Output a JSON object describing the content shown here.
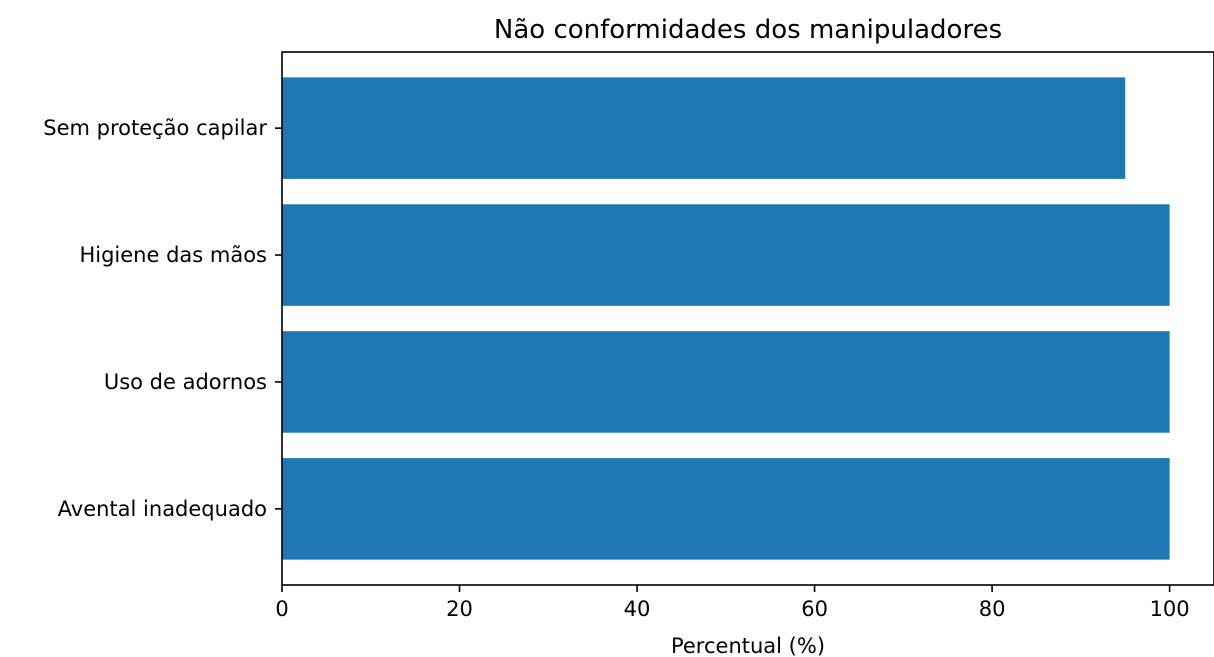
{
  "chart_data": {
    "type": "bar",
    "orientation": "horizontal",
    "title": "Não conformidades dos manipuladores",
    "xlabel": "Percentual (%)",
    "ylabel": "",
    "categories": [
      "Avental inadequado",
      "Uso de adornos",
      "Higiene das mãos",
      "Sem proteção capilar"
    ],
    "values": [
      100,
      100,
      100,
      95
    ],
    "xlim": [
      0,
      105
    ],
    "xticks": [
      "0",
      "20",
      "40",
      "60",
      "80",
      "100"
    ],
    "grid": false,
    "legend": "none",
    "bar_color": "#1f77b4"
  }
}
